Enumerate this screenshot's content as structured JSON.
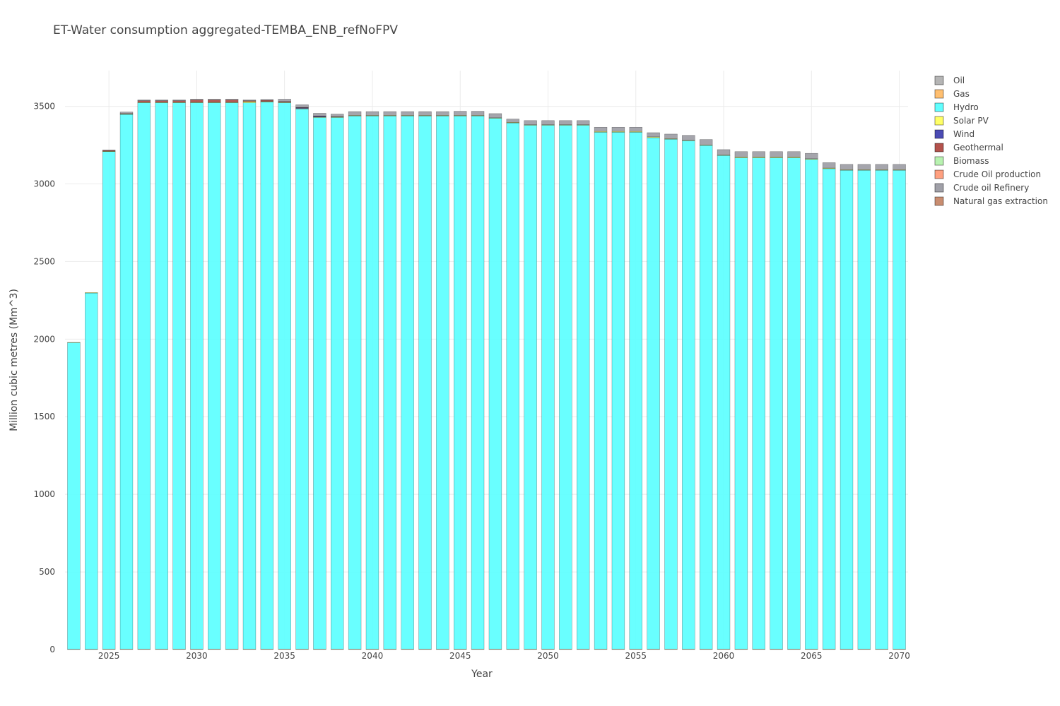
{
  "chart_data": {
    "type": "bar",
    "stacked": true,
    "title": "ET-Water consumption aggregated-TEMBA_ENB_refNoFPV",
    "xlabel": "Year",
    "ylabel": "Million cubic metres (Mm^3)",
    "xlim": [
      2022.5,
      2070.5
    ],
    "ylim": [
      0,
      3730
    ],
    "x_ticks": [
      "2025",
      "2030",
      "2035",
      "2040",
      "2045",
      "2050",
      "2055",
      "2060",
      "2065",
      "2070"
    ],
    "y_ticks": [
      "0",
      "500",
      "1000",
      "1500",
      "2000",
      "2500",
      "3000",
      "3500"
    ],
    "grid": true,
    "legend_position": "right",
    "categories": [
      2023,
      2024,
      2025,
      2026,
      2027,
      2028,
      2029,
      2030,
      2031,
      2032,
      2033,
      2034,
      2035,
      2036,
      2037,
      2038,
      2039,
      2040,
      2041,
      2042,
      2043,
      2044,
      2045,
      2046,
      2047,
      2048,
      2049,
      2050,
      2051,
      2052,
      2053,
      2054,
      2055,
      2056,
      2057,
      2058,
      2059,
      2060,
      2061,
      2062,
      2063,
      2064,
      2065,
      2066,
      2067,
      2068,
      2069,
      2070
    ],
    "series": [
      {
        "name": "Oil",
        "color": "#b5b5b5",
        "values": [
          0,
          0,
          0,
          0,
          0,
          0,
          0,
          0,
          0,
          0,
          0,
          0,
          0,
          0,
          0,
          0,
          0,
          0,
          0,
          0,
          0,
          0,
          0,
          0,
          0,
          0,
          0,
          0,
          0,
          0,
          0,
          0,
          0,
          0,
          0,
          0,
          0,
          0,
          0,
          0,
          0,
          0,
          0,
          0,
          0,
          0,
          0,
          0
        ]
      },
      {
        "name": "Gas",
        "color": "#ffbf70",
        "values": [
          2,
          2,
          3,
          3,
          3,
          3,
          3,
          3,
          3,
          3,
          3,
          3,
          3,
          3,
          3,
          3,
          3,
          3,
          3,
          3,
          3,
          3,
          3,
          3,
          3,
          3,
          3,
          3,
          3,
          3,
          3,
          3,
          3,
          3,
          3,
          3,
          3,
          3,
          3,
          3,
          3,
          3,
          3,
          3,
          3,
          3,
          3,
          3
        ]
      },
      {
        "name": "Hydro",
        "color": "#61ffff",
        "values": [
          1975,
          2295,
          3205,
          3445,
          3520,
          3520,
          3520,
          3520,
          3520,
          3520,
          3520,
          3525,
          3520,
          3480,
          3425,
          3425,
          3435,
          3435,
          3435,
          3435,
          3435,
          3435,
          3435,
          3435,
          3420,
          3390,
          3375,
          3375,
          3375,
          3375,
          3330,
          3330,
          3330,
          3295,
          3285,
          3275,
          3245,
          3180,
          3165,
          3165,
          3165,
          3165,
          3155,
          3095,
          3085,
          3085,
          3085,
          3085
        ]
      },
      {
        "name": "Solar PV",
        "color": "#ffff66",
        "values": [
          2,
          3,
          3,
          3,
          3,
          3,
          3,
          3,
          3,
          3,
          8,
          3,
          3,
          3,
          3,
          3,
          3,
          3,
          3,
          3,
          3,
          3,
          3,
          3,
          3,
          3,
          3,
          3,
          3,
          3,
          5,
          5,
          5,
          5,
          3,
          3,
          3,
          3,
          5,
          5,
          5,
          5,
          4,
          4,
          3,
          3,
          3,
          3
        ]
      },
      {
        "name": "Wind",
        "color": "#4b4bb4",
        "values": [
          0,
          0,
          0,
          0,
          0,
          0,
          0,
          0,
          0,
          0,
          0,
          0,
          0,
          5,
          5,
          0,
          0,
          0,
          0,
          0,
          0,
          0,
          0,
          0,
          0,
          0,
          0,
          0,
          0,
          0,
          0,
          0,
          0,
          0,
          0,
          0,
          0,
          0,
          0,
          0,
          0,
          0,
          0,
          0,
          0,
          0,
          0,
          0
        ]
      },
      {
        "name": "Geothermal",
        "color": "#b4524c",
        "values": [
          0,
          0,
          5,
          2,
          10,
          10,
          10,
          15,
          15,
          15,
          5,
          8,
          5,
          2,
          2,
          2,
          0,
          0,
          0,
          0,
          0,
          0,
          0,
          0,
          0,
          0,
          0,
          0,
          0,
          0,
          0,
          0,
          0,
          0,
          0,
          0,
          0,
          0,
          0,
          0,
          0,
          0,
          0,
          0,
          0,
          0,
          0,
          0
        ]
      },
      {
        "name": "Biomass",
        "color": "#b8f2b0",
        "values": [
          0,
          0,
          0,
          0,
          0,
          0,
          0,
          0,
          0,
          0,
          0,
          0,
          0,
          0,
          0,
          0,
          0,
          0,
          0,
          0,
          0,
          0,
          0,
          0,
          0,
          0,
          0,
          0,
          0,
          0,
          0,
          0,
          0,
          0,
          0,
          0,
          0,
          0,
          0,
          0,
          0,
          0,
          0,
          0,
          0,
          0,
          0,
          0
        ]
      },
      {
        "name": "Crude Oil production",
        "color": "#ffa080",
        "values": [
          0,
          0,
          0,
          0,
          0,
          0,
          0,
          0,
          0,
          0,
          0,
          0,
          0,
          0,
          0,
          0,
          0,
          0,
          0,
          0,
          0,
          0,
          0,
          0,
          0,
          0,
          0,
          0,
          0,
          0,
          0,
          0,
          0,
          0,
          0,
          0,
          0,
          0,
          0,
          0,
          0,
          0,
          0,
          0,
          0,
          0,
          0,
          0
        ]
      },
      {
        "name": "Crude oil Refinery",
        "color": "#a0a0a8",
        "values": [
          0,
          0,
          2,
          10,
          5,
          5,
          5,
          5,
          5,
          5,
          5,
          5,
          15,
          17,
          17,
          17,
          25,
          25,
          25,
          25,
          25,
          25,
          27,
          27,
          27,
          22,
          27,
          27,
          27,
          27,
          27,
          27,
          27,
          27,
          30,
          32,
          35,
          35,
          35,
          35,
          35,
          35,
          35,
          35,
          35,
          35,
          35,
          35
        ]
      },
      {
        "name": "Natural gas extraction",
        "color": "#c98d70",
        "values": [
          0,
          0,
          0,
          0,
          0,
          0,
          0,
          0,
          0,
          0,
          0,
          0,
          0,
          0,
          0,
          0,
          0,
          0,
          0,
          0,
          0,
          0,
          0,
          0,
          0,
          0,
          0,
          0,
          0,
          0,
          0,
          0,
          0,
          0,
          0,
          0,
          0,
          0,
          0,
          0,
          0,
          0,
          0,
          0,
          0,
          0,
          0,
          0
        ]
      }
    ]
  }
}
